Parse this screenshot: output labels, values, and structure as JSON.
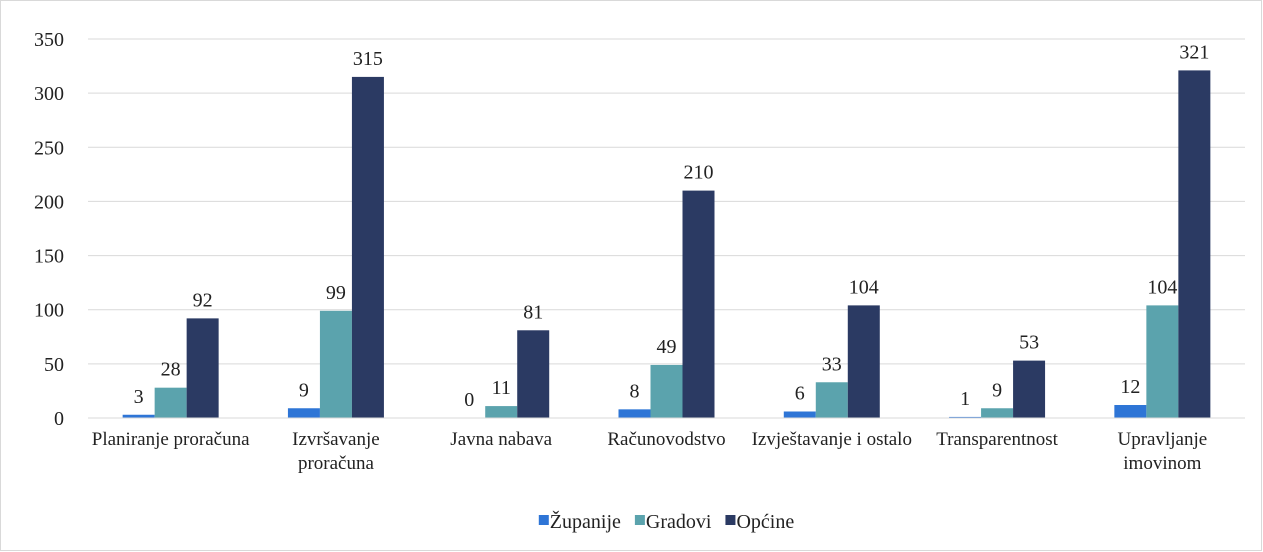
{
  "chart_data": {
    "type": "bar",
    "categories": [
      "Planiranje proračuna",
      "Izvršavanje proračuna",
      "Javna nabava",
      "Računovodstvo",
      "Izvještavanje i ostalo",
      "Transparentnost",
      "Upravljanje imovinom"
    ],
    "series": [
      {
        "name": "Županije",
        "color": "#2e75d6",
        "values": [
          3,
          9,
          0,
          8,
          6,
          1,
          12
        ]
      },
      {
        "name": "Gradovi",
        "color": "#5ba3ad",
        "values": [
          28,
          99,
          11,
          49,
          33,
          9,
          104
        ]
      },
      {
        "name": "Općine",
        "color": "#2b3a63",
        "values": [
          92,
          315,
          81,
          210,
          104,
          53,
          321
        ]
      }
    ],
    "ylim": [
      0,
      350
    ],
    "yticks": [
      0,
      50,
      100,
      150,
      200,
      250,
      300,
      350
    ],
    "grid": true,
    "legend": "bottom"
  }
}
